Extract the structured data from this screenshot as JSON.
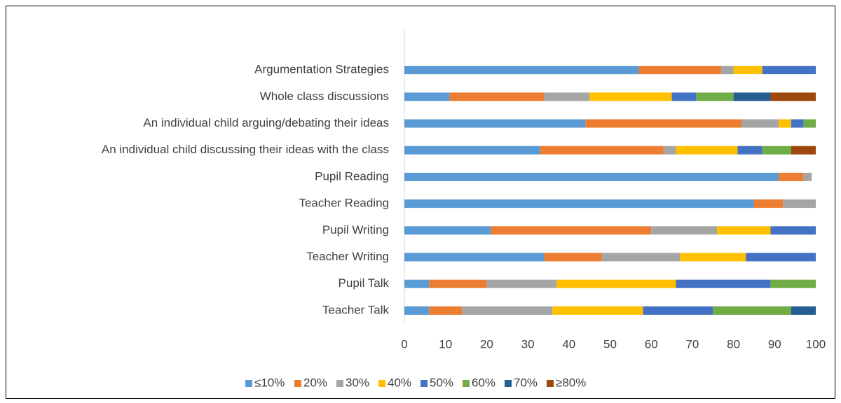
{
  "chart_data": {
    "type": "stacked_bar_horizontal",
    "categories": [
      "Argumentation Strategies",
      "Whole class discussions",
      "An individual child arguing/debating their ideas",
      "An individual child discussing their ideas with the class",
      "Pupil Reading",
      "Teacher Reading",
      "Pupil Writing",
      "Teacher Writing",
      "Pupil Talk",
      "Teacher Talk"
    ],
    "series": [
      {
        "name": "≤10%",
        "color": "#5b9bd5",
        "values": [
          57,
          11,
          44,
          33,
          91,
          85,
          21,
          34,
          6,
          6
        ]
      },
      {
        "name": "20%",
        "color": "#ed7d31",
        "values": [
          20,
          23,
          38,
          30,
          6,
          7,
          39,
          14,
          14,
          8
        ]
      },
      {
        "name": "30%",
        "color": "#a5a5a5",
        "values": [
          3,
          11,
          9,
          3,
          2,
          8,
          16,
          19,
          17,
          22
        ]
      },
      {
        "name": "40%",
        "color": "#ffc000",
        "values": [
          7,
          20,
          3,
          15,
          0,
          0,
          13,
          16,
          29,
          22
        ]
      },
      {
        "name": "50%",
        "color": "#4472c4",
        "values": [
          13,
          6,
          3,
          6,
          0,
          0,
          11,
          17,
          23,
          17
        ]
      },
      {
        "name": "60%",
        "color": "#70ad47",
        "values": [
          0,
          9,
          3,
          7,
          0,
          0,
          0,
          0,
          11,
          19
        ]
      },
      {
        "name": "70%",
        "color": "#255e91",
        "values": [
          0,
          9,
          0,
          0,
          0,
          0,
          0,
          0,
          0,
          6
        ]
      },
      {
        "name": "≥80%",
        "color": "#9e480e",
        "values": [
          0,
          11,
          0,
          6,
          0,
          0,
          0,
          0,
          0,
          0
        ]
      }
    ],
    "xlim": [
      0,
      100
    ],
    "xticks": [
      0,
      10,
      20,
      30,
      40,
      50,
      60,
      70,
      80,
      90,
      100
    ],
    "legend": "bottom"
  }
}
